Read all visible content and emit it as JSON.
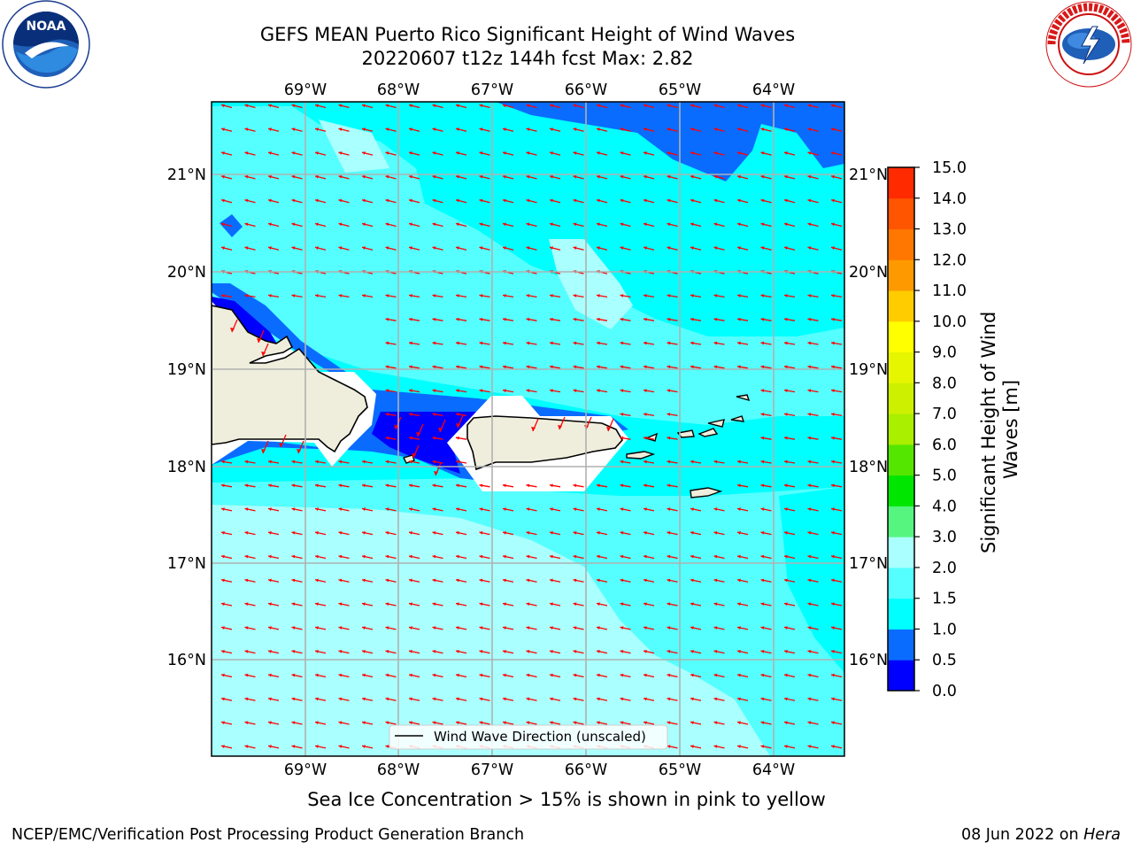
{
  "title_line1": "GEFS MEAN Puerto Rico Significant Height of Wind Waves",
  "title_line2": "20220607 t12z 144h fcst   Max: 2.82",
  "longitude_labels": [
    "69°W",
    "68°W",
    "67°W",
    "66°W",
    "65°W",
    "64°W"
  ],
  "latitude_labels": [
    "21°N",
    "20°N",
    "19°N",
    "18°N",
    "17°N",
    "16°N"
  ],
  "legend_label": "Wind Wave Direction (unscaled)",
  "colorbar": {
    "label_line1": "Significant Height of Wind",
    "label_line2": "Waves [m]",
    "tick_labels": [
      "0.0",
      "0.5",
      "1.0",
      "1.5",
      "2.0",
      "3.0",
      "4.0",
      "5.0",
      "6.0",
      "7.0",
      "8.0",
      "9.0",
      "10.0",
      "11.0",
      "12.0",
      "13.0",
      "14.0",
      "15.0"
    ],
    "colors": [
      "#0000ff",
      "#0a6cff",
      "#00ffff",
      "#55ffff",
      "#aaffff",
      "#55f580",
      "#00e600",
      "#55e600",
      "#aaee00",
      "#ccf000",
      "#e6f500",
      "#ffff00",
      "#ffcc00",
      "#ff9900",
      "#ff7700",
      "#ff5500",
      "#ff2a00"
    ]
  },
  "sea_ice_note": "Sea Ice Concentration > 15% is shown in pink to yellow",
  "footer_left": "NCEP/EMC/Verification Post Processing Product Generation Branch",
  "footer_right_prefix": "08 Jun 2022 on ",
  "footer_right_host": "Hera",
  "logos": {
    "left": "noaa-logo",
    "right": "nws-logo"
  },
  "colors": {
    "land": "#efeedd",
    "arrow": "#ff0000",
    "grid": "#b0b0b0"
  }
}
